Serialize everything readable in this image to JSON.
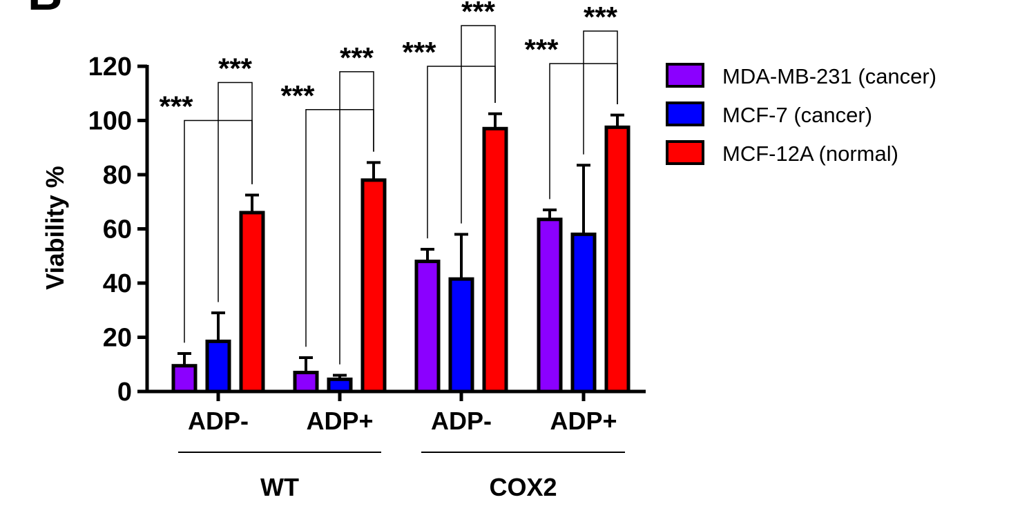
{
  "panel_label": "B",
  "chart_data": {
    "type": "bar",
    "title": "",
    "xlabel": "",
    "ylabel": "Viability %",
    "ylim": [
      0,
      120
    ],
    "yticks": [
      0,
      20,
      40,
      60,
      80,
      100,
      120
    ],
    "categories": [
      "ADP-",
      "ADP+",
      "ADP-",
      "ADP+"
    ],
    "groups": [
      {
        "label": "WT",
        "categories": [
          0,
          1
        ]
      },
      {
        "label": "COX2",
        "categories": [
          2,
          3
        ]
      }
    ],
    "series": [
      {
        "name": "MDA-MB-231 (cancer)",
        "color": "#8b00ff",
        "values": [
          9.5,
          7,
          48,
          63.5
        ],
        "errors": [
          4.5,
          5.5,
          4.5,
          3.5
        ]
      },
      {
        "name": "MCF-7 (cancer)",
        "color": "#0000ff",
        "values": [
          18.5,
          4.5,
          41.5,
          58
        ],
        "errors": [
          10.5,
          1.5,
          16.5,
          25.5
        ]
      },
      {
        "name": "MCF-12A (normal)",
        "color": "#ff0000",
        "values": [
          66,
          78,
          97,
          97.5
        ],
        "errors": [
          6.5,
          6.5,
          5.5,
          4.5
        ]
      }
    ],
    "significance": [
      {
        "category": 0,
        "from": 0,
        "to": 2,
        "level": 100,
        "label": "***"
      },
      {
        "category": 0,
        "from": 1,
        "to": 2,
        "level": 114,
        "label": "***"
      },
      {
        "category": 1,
        "from": 0,
        "to": 2,
        "level": 104,
        "label": "***"
      },
      {
        "category": 1,
        "from": 1,
        "to": 2,
        "level": 118,
        "label": "***"
      },
      {
        "category": 2,
        "from": 0,
        "to": 2,
        "level": 120,
        "label": "***"
      },
      {
        "category": 2,
        "from": 1,
        "to": 2,
        "level": 135,
        "label": "***"
      },
      {
        "category": 3,
        "from": 0,
        "to": 2,
        "level": 121,
        "label": "***"
      },
      {
        "category": 3,
        "from": 1,
        "to": 2,
        "level": 133,
        "label": "***"
      }
    ],
    "legend_position": "right",
    "grid": false
  }
}
